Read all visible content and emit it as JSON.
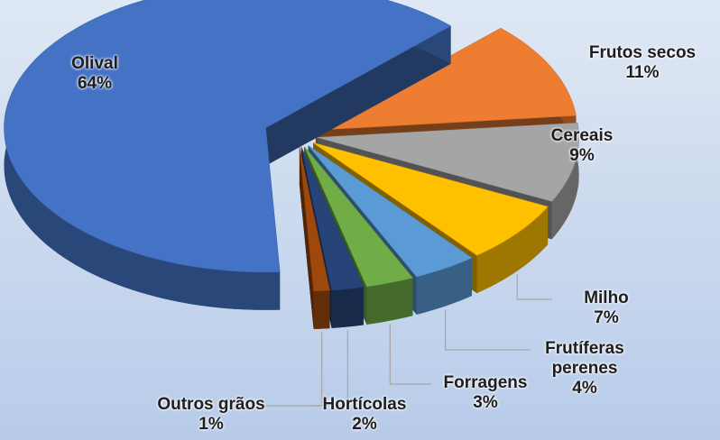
{
  "chart_data": {
    "type": "pie",
    "categories": [
      "Olival",
      "Frutos secos",
      "Cereais",
      "Milho",
      "Frutíferas perenes",
      "Forragens",
      "Hortícolas",
      "Outros grãos"
    ],
    "values": [
      64,
      11,
      9,
      7,
      4,
      3,
      2,
      1
    ],
    "value_labels": [
      "64%",
      "11%",
      "9%",
      "7%",
      "4%",
      "3%",
      "2%",
      "1%"
    ],
    "colors": [
      "#4472c4",
      "#ed7d31",
      "#a5a5a5",
      "#ffc000",
      "#5b9bd5",
      "#70ad47",
      "#264478",
      "#9e480e"
    ]
  }
}
